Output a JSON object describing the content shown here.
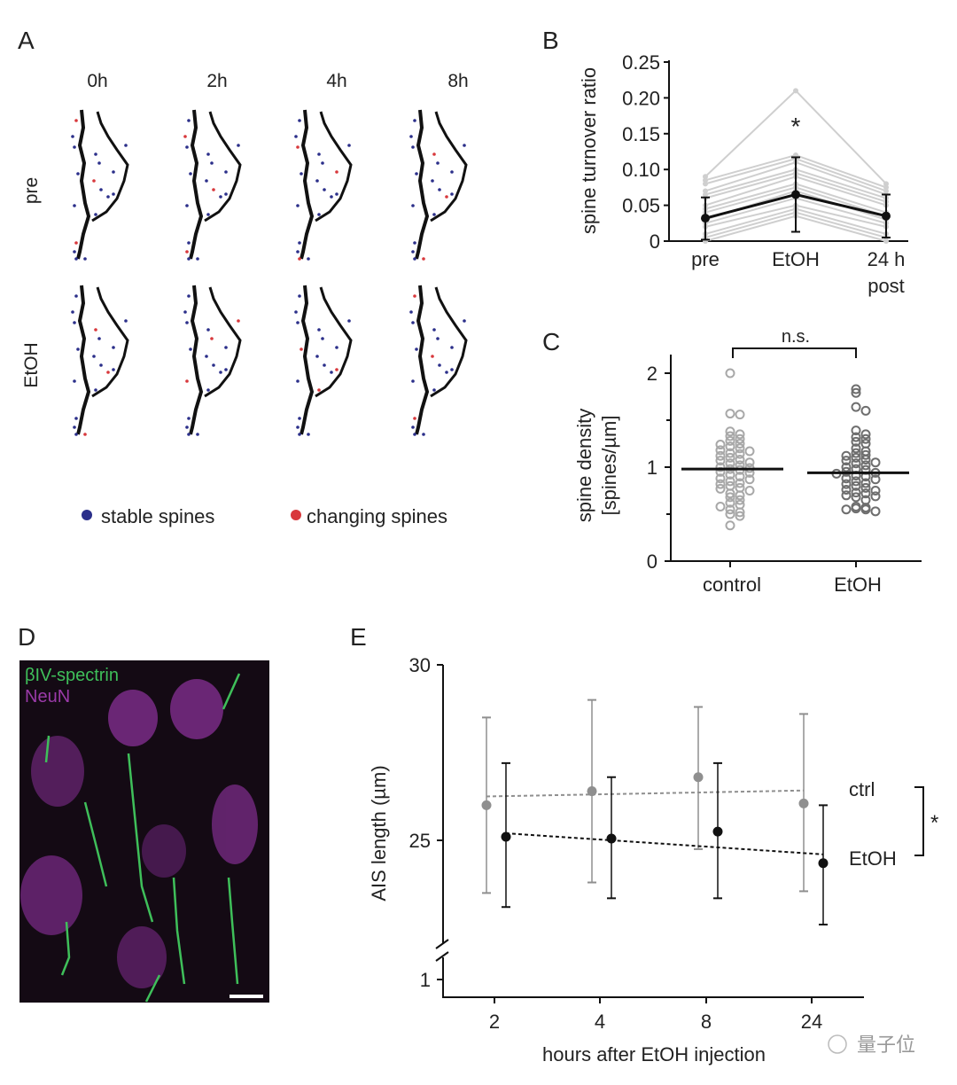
{
  "panel_labels": {
    "a": "A",
    "b": "B",
    "c": "C",
    "d": "D",
    "e": "E"
  },
  "panel_a": {
    "time_labels": [
      "0h",
      "2h",
      "4h",
      "8h"
    ],
    "row_labels": [
      "pre",
      "EtOH"
    ],
    "legend": [
      {
        "label": "stable spines",
        "color": "#2b2f8a"
      },
      {
        "label": "changing spines",
        "color": "#d8383c"
      }
    ]
  },
  "panel_d": {
    "channel_labels": [
      {
        "label": "βIV-spectrin",
        "color": "#3fbf5a"
      },
      {
        "label": "NeuN",
        "color": "#9a3aa8"
      }
    ]
  },
  "watermark": "量子位",
  "chart_data": [
    {
      "id": "B",
      "type": "line",
      "ylabel": "spine turnover ratio",
      "categories": [
        "pre",
        "EtOH",
        "24 h post"
      ],
      "category_lines": [
        [
          "pre"
        ],
        [
          "EtOH"
        ],
        [
          "24 h",
          "post"
        ]
      ],
      "ylim": [
        0,
        0.25
      ],
      "yticks": [
        "0",
        "0.05",
        "0.10",
        "0.15",
        "0.20",
        "0.25"
      ],
      "annotation": "*",
      "mean": {
        "values": [
          0.032,
          0.065,
          0.035
        ],
        "err_low": [
          0.002,
          0.013,
          0.005
        ],
        "err_high": [
          0.061,
          0.117,
          0.065
        ],
        "color": "#111111"
      },
      "individual": {
        "color": "#cfcfcf",
        "values": [
          [
            0.09,
            0.21,
            0.08
          ],
          [
            0.085,
            0.12,
            0.075
          ],
          [
            0.08,
            0.115,
            0.07
          ],
          [
            0.07,
            0.11,
            0.065
          ],
          [
            0.065,
            0.1,
            0.06
          ],
          [
            0.06,
            0.095,
            0.055
          ],
          [
            0.05,
            0.09,
            0.05
          ],
          [
            0.045,
            0.08,
            0.04
          ],
          [
            0.04,
            0.075,
            0.035
          ],
          [
            0.03,
            0.07,
            0.03
          ],
          [
            0.025,
            0.06,
            0.025
          ],
          [
            0.02,
            0.05,
            0.02
          ],
          [
            0.01,
            0.045,
            0.01
          ],
          [
            0.005,
            0.04,
            0.005
          ],
          [
            0.0,
            0.035,
            0.0
          ]
        ]
      }
    },
    {
      "id": "C",
      "type": "scatter",
      "ylabel_lines": [
        "spine density",
        "[spines/µm]"
      ],
      "categories": [
        "control",
        "EtOH"
      ],
      "ylim": [
        0,
        2.2
      ],
      "yticks": [
        "0",
        "1",
        "2"
      ],
      "annotation": "n.s.",
      "means": [
        0.98,
        0.94
      ],
      "colors": [
        "#a8a8a8",
        "#6e6e6e"
      ],
      "values": [
        [
          2.0,
          1.57,
          1.56,
          1.38,
          1.35,
          1.33,
          1.3,
          1.28,
          1.25,
          1.24,
          1.22,
          1.2,
          1.18,
          1.17,
          1.15,
          1.14,
          1.12,
          1.1,
          1.08,
          1.07,
          1.05,
          1.04,
          1.02,
          1.0,
          0.99,
          0.98,
          0.97,
          0.95,
          0.94,
          0.92,
          0.9,
          0.88,
          0.87,
          0.85,
          0.83,
          0.82,
          0.8,
          0.78,
          0.77,
          0.75,
          0.72,
          0.7,
          0.68,
          0.65,
          0.62,
          0.6,
          0.58,
          0.55,
          0.52,
          0.5,
          0.48,
          0.38
        ],
        [
          1.83,
          1.79,
          1.64,
          1.6,
          1.39,
          1.35,
          1.32,
          1.3,
          1.27,
          1.25,
          1.2,
          1.17,
          1.15,
          1.13,
          1.12,
          1.1,
          1.08,
          1.07,
          1.05,
          1.04,
          1.02,
          1.0,
          0.98,
          0.97,
          0.95,
          0.94,
          0.93,
          0.91,
          0.9,
          0.88,
          0.87,
          0.85,
          0.83,
          0.82,
          0.8,
          0.78,
          0.76,
          0.75,
          0.73,
          0.72,
          0.7,
          0.69,
          0.68,
          0.65,
          0.58,
          0.57,
          0.56,
          0.55,
          0.55,
          0.53
        ]
      ]
    },
    {
      "id": "E",
      "type": "line",
      "xlabel": "hours after EtOH injection",
      "ylabel": "AIS length (µm)",
      "categories": [
        "2",
        "4",
        "8",
        "24"
      ],
      "yticks": [
        "1",
        "25",
        "30"
      ],
      "ylim": [
        22,
        30
      ],
      "axis_break": true,
      "significance": "*",
      "series": [
        {
          "name": "ctrl",
          "color": "#8f8f8f",
          "values": [
            26.0,
            26.4,
            26.8,
            26.05
          ],
          "err_low": [
            23.5,
            23.8,
            24.75,
            23.55
          ],
          "err_high": [
            28.5,
            29.0,
            28.8,
            28.6
          ],
          "trend": [
            26.25,
            26.42
          ]
        },
        {
          "name": "EtOH",
          "color": "#111111",
          "values": [
            25.1,
            25.05,
            25.25,
            24.35
          ],
          "err_low": [
            23.1,
            23.35,
            23.35,
            22.6
          ],
          "err_high": [
            27.2,
            26.8,
            27.2,
            26.0
          ],
          "trend": [
            25.2,
            24.6
          ]
        }
      ]
    }
  ]
}
